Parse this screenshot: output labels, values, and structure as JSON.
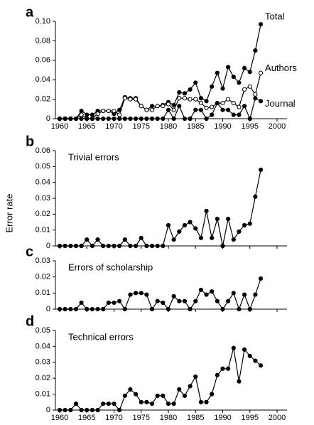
{
  "ylabel": "Error rate",
  "chart_data": [
    {
      "type": "line",
      "label": "a",
      "x": [
        1960,
        1961,
        1962,
        1963,
        1964,
        1965,
        1966,
        1967,
        1968,
        1969,
        1970,
        1971,
        1972,
        1973,
        1974,
        1975,
        1976,
        1977,
        1978,
        1979,
        1980,
        1981,
        1982,
        1983,
        1984,
        1985,
        1986,
        1987,
        1988,
        1989,
        1990,
        1991,
        1992,
        1993,
        1994,
        1995,
        1996,
        1997
      ],
      "series": [
        {
          "name": "Total",
          "color": "#000000",
          "marker": "filled",
          "values": [
            0,
            0,
            0,
            0,
            0.008,
            0.004,
            0.004,
            0.008,
            0.008,
            0.008,
            0.005,
            0.009,
            0.022,
            0.021,
            0.021,
            0.013,
            0.009,
            0.013,
            0.013,
            0.014,
            0.017,
            0.014,
            0.027,
            0.026,
            0.03,
            0.037,
            0.021,
            0.018,
            0.033,
            0.047,
            0.031,
            0.053,
            0.043,
            0.037,
            0.052,
            0.048,
            0.07,
            0.097
          ]
        },
        {
          "name": "Authors",
          "color": "#000000",
          "marker": "open",
          "values": [
            0,
            0,
            0,
            0,
            0.004,
            0,
            0,
            0.005,
            0.008,
            0.008,
            0.008,
            0.004,
            0.021,
            0.02,
            0.02,
            0.013,
            0.009,
            0.009,
            0.013,
            0.013,
            0.015,
            0.009,
            0.021,
            0.021,
            0.02,
            0.02,
            0.016,
            0.011,
            0.012,
            0.016,
            0.016,
            0.02,
            0.016,
            0.012,
            0.03,
            0.033,
            0.025,
            0.047
          ]
        },
        {
          "name": "Journal",
          "color": "#000000",
          "marker": "filled",
          "values": [
            0,
            0,
            0,
            0,
            0,
            0,
            0,
            0,
            0,
            0,
            0,
            0,
            0,
            0,
            0,
            0,
            0,
            0,
            0,
            0,
            0.009,
            0,
            0.013,
            0,
            0,
            0.009,
            0.009,
            0,
            0.004,
            0.016,
            0.009,
            0.009,
            0.004,
            0.004,
            0.013,
            0,
            0.021,
            0.018
          ]
        }
      ],
      "xlim": [
        1960,
        2000
      ],
      "xticks": [
        1960,
        1965,
        1970,
        1975,
        1980,
        1985,
        1990,
        1995,
        2000
      ],
      "ylim": [
        0,
        0.1
      ],
      "yticks": [
        0,
        0.02,
        0.04,
        0.06,
        0.08,
        {
          "value": 0.1,
          "label": "0.10"
        }
      ]
    },
    {
      "type": "line",
      "label": "b",
      "title": "Trivial errors",
      "x": [
        1960,
        1961,
        1962,
        1963,
        1964,
        1965,
        1966,
        1967,
        1968,
        1969,
        1970,
        1971,
        1972,
        1973,
        1974,
        1975,
        1976,
        1977,
        1978,
        1979,
        1980,
        1981,
        1982,
        1983,
        1984,
        1985,
        1986,
        1987,
        1988,
        1989,
        1990,
        1991,
        1992,
        1993,
        1994,
        1995,
        1996,
        1997
      ],
      "series": [
        {
          "color": "#000000",
          "marker": "filled",
          "values": [
            0,
            0,
            0,
            0,
            0,
            0.004,
            0,
            0.004,
            0,
            0,
            0,
            0,
            0.004,
            0,
            0,
            0.005,
            0,
            0,
            0,
            0,
            0.013,
            0.004,
            0.009,
            0.013,
            0.015,
            0.011,
            0.005,
            0.022,
            0.005,
            0.017,
            0,
            0.017,
            0.004,
            0.009,
            0.013,
            0.014,
            0.031,
            0.048
          ]
        }
      ],
      "xlim": [
        1960,
        2000
      ],
      "ylim": [
        0,
        0.06
      ],
      "yticks": [
        0,
        0.01,
        0.02,
        0.03,
        0.04,
        0.05,
        0.06
      ]
    },
    {
      "type": "line",
      "label": "c",
      "title": "Errors of scholarship",
      "x": [
        1960,
        1961,
        1962,
        1963,
        1964,
        1965,
        1966,
        1967,
        1968,
        1969,
        1970,
        1971,
        1972,
        1973,
        1974,
        1975,
        1976,
        1977,
        1978,
        1979,
        1980,
        1981,
        1982,
        1983,
        1984,
        1985,
        1986,
        1987,
        1988,
        1989,
        1990,
        1991,
        1992,
        1993,
        1994,
        1995,
        1996,
        1997
      ],
      "series": [
        {
          "color": "#000000",
          "marker": "filled",
          "values": [
            0,
            0,
            0,
            0,
            0.004,
            0,
            0,
            0,
            0,
            0.004,
            0.004,
            0.005,
            0,
            0.009,
            0.01,
            0.01,
            0.009,
            0,
            0.005,
            0.004,
            0,
            0.008,
            0.005,
            0.005,
            0,
            0.005,
            0.012,
            0.009,
            0.011,
            0.005,
            0,
            0.005,
            0.01,
            0,
            0.009,
            0,
            0.009,
            0.019
          ]
        }
      ],
      "xlim": [
        1960,
        2000
      ],
      "ylim": [
        0,
        0.03
      ],
      "yticks": [
        0,
        0.01,
        0.02,
        0.03
      ]
    },
    {
      "type": "line",
      "label": "d",
      "title": "Technical errors",
      "x": [
        1960,
        1961,
        1962,
        1963,
        1964,
        1965,
        1966,
        1967,
        1968,
        1969,
        1970,
        1971,
        1972,
        1973,
        1974,
        1975,
        1976,
        1977,
        1978,
        1979,
        1980,
        1981,
        1982,
        1983,
        1984,
        1985,
        1986,
        1987,
        1988,
        1989,
        1990,
        1991,
        1992,
        1993,
        1994,
        1995,
        1996,
        1997
      ],
      "series": [
        {
          "color": "#000000",
          "marker": "filled",
          "values": [
            0,
            0,
            0,
            0.004,
            0,
            0,
            0,
            0,
            0.004,
            0.004,
            0.004,
            0,
            0.009,
            0.013,
            0.01,
            0.005,
            0.005,
            0.004,
            0.009,
            0.009,
            0.004,
            0.004,
            0.013,
            0.009,
            0.015,
            0.021,
            0.005,
            0.005,
            0.01,
            0.022,
            0.026,
            0.026,
            0.039,
            0.018,
            0.038,
            0.034,
            0.031,
            0.028
          ]
        }
      ],
      "xlim": [
        1960,
        2000
      ],
      "xticks": [
        1960,
        1965,
        1970,
        1975,
        1980,
        1985,
        1990,
        1995,
        2000
      ],
      "ylim": [
        0,
        0.05
      ],
      "yticks": [
        0,
        0.01,
        0.02,
        0.03,
        0.04,
        0.05
      ]
    }
  ]
}
